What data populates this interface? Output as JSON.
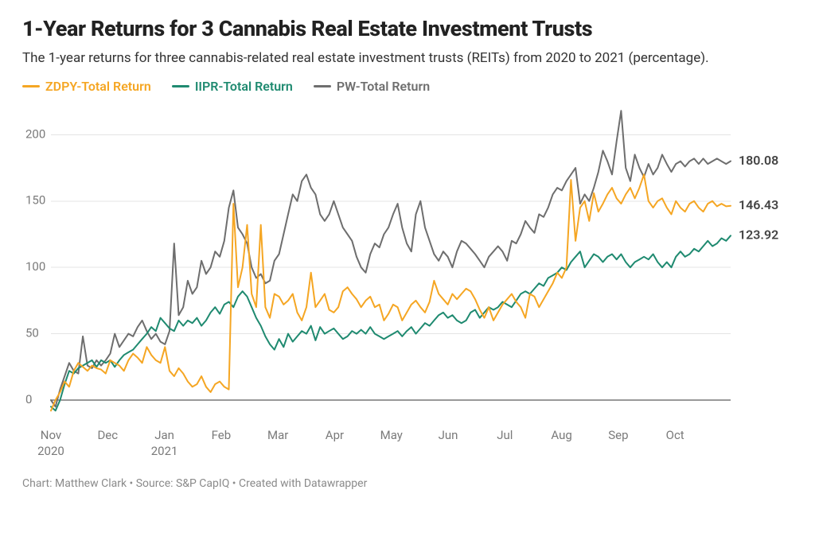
{
  "title": "1-Year Returns for 3 Cannabis Real Estate Investment Trusts",
  "subtitle": "The 1-year returns for three cannabis-related real estate investment trusts (REITs) from 2020 to 2021 (percentage).",
  "credits": "Chart: Matthew Clark • Source: S&P CapIQ • Created with Datawrapper",
  "chart": {
    "type": "line",
    "background_color": "#ffffff",
    "grid_color": "#e4e4e4",
    "zero_line_color": "#333333",
    "ylim": [
      -15,
      220
    ],
    "yticks": [
      0,
      50,
      100,
      150,
      200
    ],
    "x_categories": [
      "Nov",
      "Dec",
      "Jan",
      "Feb",
      "Mar",
      "Apr",
      "May",
      "Jun",
      "Jul",
      "Aug",
      "Sep",
      "Oct"
    ],
    "x_sublabels": {
      "0": "2020",
      "2": "2021"
    },
    "line_width": 2,
    "label_fontsize": 15,
    "end_label_fontsize": 16,
    "legend_fontsize": 16,
    "n_points": 150,
    "series": [
      {
        "name": "ZDPY-Total Return",
        "color": "#f5a623",
        "end_value": 146.43,
        "end_label": "146.43",
        "data": [
          -8,
          0,
          6,
          14,
          10,
          22,
          28,
          25,
          22,
          26,
          24,
          23,
          20,
          30,
          28,
          26,
          22,
          30,
          35,
          32,
          28,
          40,
          34,
          30,
          28,
          40,
          22,
          18,
          24,
          20,
          14,
          10,
          12,
          18,
          10,
          6,
          12,
          14,
          10,
          8,
          148,
          85,
          100,
          132,
          80,
          70,
          132,
          70,
          62,
          80,
          78,
          72,
          75,
          80,
          66,
          60,
          70,
          96,
          70,
          75,
          80,
          68,
          66,
          70,
          82,
          85,
          80,
          76,
          70,
          75,
          78,
          70,
          72,
          60,
          65,
          72,
          70,
          60,
          66,
          72,
          75,
          70,
          66,
          74,
          90,
          80,
          76,
          72,
          80,
          76,
          80,
          84,
          82,
          76,
          68,
          62,
          70,
          60,
          66,
          72,
          76,
          80,
          74,
          70,
          62,
          80,
          78,
          70,
          76,
          82,
          88,
          96,
          92,
          100,
          166,
          120,
          145,
          150,
          135,
          156,
          142,
          148,
          155,
          160,
          152,
          148,
          155,
          160,
          152,
          160,
          170,
          150,
          145,
          150,
          152,
          145,
          140,
          150,
          145,
          142,
          148,
          150,
          145,
          142,
          148,
          150,
          146,
          148,
          146,
          146.43
        ]
      },
      {
        "name": "IIPR-Total Return",
        "color": "#1f8a70",
        "end_value": 123.92,
        "end_label": "123.92",
        "data": [
          -5,
          -8,
          0,
          12,
          22,
          20,
          24,
          26,
          28,
          30,
          25,
          30,
          28,
          30,
          25,
          30,
          34,
          36,
          38,
          42,
          46,
          50,
          55,
          52,
          62,
          58,
          54,
          52,
          60,
          56,
          60,
          58,
          62,
          56,
          60,
          66,
          70,
          65,
          72,
          74,
          70,
          78,
          82,
          78,
          70,
          62,
          56,
          48,
          42,
          38,
          46,
          40,
          50,
          44,
          48,
          52,
          50,
          56,
          45,
          55,
          50,
          52,
          54,
          50,
          46,
          48,
          52,
          50,
          53,
          50,
          55,
          50,
          48,
          46,
          48,
          50,
          52,
          48,
          52,
          55,
          50,
          54,
          58,
          56,
          60,
          64,
          66,
          62,
          64,
          60,
          58,
          60,
          66,
          68,
          62,
          66,
          70,
          68,
          70,
          74,
          72,
          70,
          75,
          80,
          82,
          80,
          84,
          88,
          86,
          92,
          94,
          96,
          100,
          98,
          104,
          108,
          112,
          100,
          105,
          110,
          108,
          104,
          108,
          110,
          106,
          110,
          104,
          100,
          104,
          106,
          108,
          106,
          110,
          104,
          100,
          104,
          100,
          108,
          112,
          108,
          110,
          114,
          112,
          116,
          120,
          116,
          118,
          122,
          120,
          123.92
        ]
      },
      {
        "name": "PW-Total Return",
        "color": "#6e6e6e",
        "end_value": 180.08,
        "end_label": "180.08",
        "data": [
          0,
          -5,
          8,
          18,
          28,
          22,
          20,
          48,
          26,
          24,
          30,
          26,
          30,
          35,
          50,
          40,
          45,
          50,
          48,
          55,
          60,
          52,
          46,
          50,
          44,
          42,
          52,
          118,
          64,
          70,
          90,
          80,
          85,
          105,
          95,
          100,
          112,
          108,
          120,
          145,
          158,
          130,
          125,
          118,
          100,
          92,
          95,
          88,
          90,
          105,
          110,
          125,
          140,
          155,
          150,
          165,
          170,
          160,
          155,
          140,
          135,
          140,
          150,
          140,
          130,
          125,
          120,
          108,
          100,
          96,
          110,
          118,
          115,
          125,
          130,
          140,
          148,
          130,
          118,
          112,
          140,
          150,
          130,
          120,
          110,
          105,
          112,
          108,
          100,
          112,
          120,
          118,
          114,
          110,
          105,
          100,
          108,
          112,
          116,
          112,
          105,
          120,
          118,
          125,
          135,
          130,
          126,
          140,
          138,
          145,
          155,
          160,
          158,
          165,
          170,
          175,
          148,
          155,
          150,
          160,
          172,
          188,
          180,
          170,
          195,
          218,
          175,
          165,
          185,
          175,
          168,
          178,
          170,
          175,
          185,
          178,
          172,
          178,
          180,
          176,
          180,
          182,
          178,
          182,
          178,
          180,
          182,
          180,
          178,
          180.08
        ]
      }
    ]
  }
}
